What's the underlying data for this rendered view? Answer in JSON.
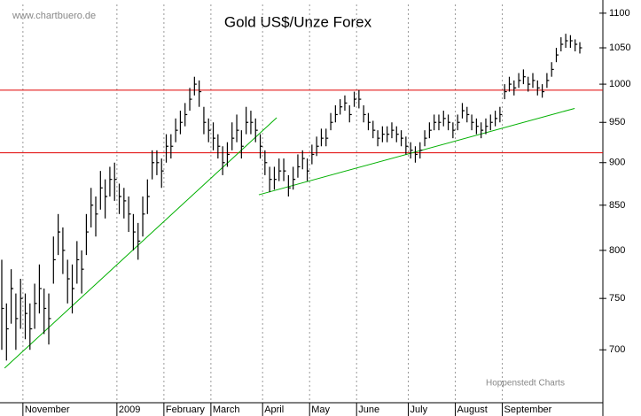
{
  "chart_data": {
    "type": "ohlc",
    "title": "Gold US$/Unze Forex",
    "watermark": "www.chartbuero.de",
    "source": "Hoppenstedt Charts",
    "log_scale": true,
    "grid": true,
    "color": "#000000",
    "ylim": [
      652,
      1113
    ],
    "yticks": [
      700,
      750,
      800,
      850,
      900,
      950,
      1000,
      1050,
      1100
    ],
    "categories": [
      null,
      null,
      null,
      null,
      null,
      "November",
      null,
      null,
      null,
      null,
      null,
      null,
      null,
      null,
      null,
      null,
      null,
      null,
      null,
      null,
      null,
      null,
      null,
      null,
      null,
      "2009",
      null,
      null,
      null,
      null,
      null,
      null,
      null,
      null,
      null,
      "February",
      null,
      null,
      null,
      null,
      null,
      null,
      null,
      null,
      null,
      "March",
      null,
      null,
      null,
      null,
      null,
      null,
      null,
      null,
      null,
      null,
      "April",
      null,
      null,
      null,
      null,
      null,
      null,
      null,
      null,
      null,
      "May",
      null,
      null,
      null,
      null,
      null,
      null,
      null,
      null,
      null,
      "June",
      null,
      null,
      null,
      null,
      null,
      null,
      null,
      null,
      null,
      null,
      "July",
      null,
      null,
      null,
      null,
      null,
      null,
      null,
      null,
      null,
      "August",
      null,
      null,
      null,
      null,
      null,
      null,
      null,
      null,
      null,
      "September",
      null,
      null,
      null,
      null,
      null,
      null,
      null,
      null,
      null,
      null,
      null,
      null,
      null,
      null,
      null,
      null
    ],
    "high": [
      790,
      745,
      780,
      755,
      770,
      755,
      745,
      765,
      785,
      760,
      755,
      815,
      840,
      825,
      790,
      785,
      810,
      800,
      840,
      870,
      860,
      890,
      880,
      895,
      900,
      875,
      870,
      860,
      840,
      830,
      860,
      880,
      915,
      915,
      905,
      935,
      935,
      955,
      965,
      975,
      995,
      1010,
      1005,
      970,
      955,
      950,
      935,
      920,
      925,
      950,
      960,
      940,
      970,
      965,
      955,
      935,
      915,
      895,
      895,
      905,
      905,
      885,
      895,
      910,
      915,
      905,
      922,
      932,
      942,
      942,
      962,
      972,
      980,
      985,
      972,
      990,
      992,
      972,
      962,
      952,
      940,
      945,
      945,
      950,
      945,
      940,
      932,
      925,
      920,
      925,
      940,
      950,
      960,
      960,
      965,
      960,
      950,
      960,
      975,
      970,
      960,
      955,
      950,
      955,
      960,
      965,
      970,
      1000,
      1010,
      1005,
      1015,
      1020,
      1010,
      1015,
      1005,
      1000,
      1015,
      1030,
      1050,
      1065,
      1070,
      1068,
      1062,
      1058
    ],
    "low": [
      700,
      690,
      725,
      700,
      720,
      710,
      700,
      720,
      735,
      715,
      705,
      765,
      795,
      775,
      745,
      735,
      765,
      755,
      795,
      825,
      815,
      845,
      835,
      860,
      855,
      840,
      835,
      820,
      800,
      790,
      815,
      840,
      880,
      885,
      870,
      900,
      905,
      925,
      935,
      945,
      965,
      985,
      970,
      935,
      925,
      915,
      905,
      885,
      895,
      915,
      925,
      905,
      935,
      935,
      925,
      905,
      885,
      865,
      868,
      878,
      878,
      860,
      868,
      882,
      892,
      878,
      898,
      908,
      920,
      920,
      940,
      950,
      960,
      965,
      950,
      970,
      968,
      950,
      940,
      930,
      920,
      925,
      925,
      930,
      925,
      920,
      910,
      905,
      900,
      905,
      920,
      930,
      940,
      940,
      945,
      940,
      930,
      940,
      955,
      950,
      940,
      935,
      930,
      935,
      940,
      945,
      950,
      980,
      990,
      985,
      995,
      1000,
      990,
      995,
      985,
      982,
      995,
      1010,
      1030,
      1045,
      1050,
      1050,
      1045,
      1042
    ],
    "close": [
      740,
      720,
      760,
      730,
      750,
      735,
      720,
      745,
      760,
      740,
      730,
      790,
      820,
      800,
      770,
      760,
      790,
      780,
      820,
      850,
      840,
      870,
      860,
      880,
      880,
      860,
      855,
      840,
      820,
      810,
      840,
      860,
      900,
      900,
      890,
      920,
      920,
      940,
      950,
      960,
      980,
      1000,
      990,
      950,
      940,
      930,
      920,
      900,
      910,
      930,
      940,
      920,
      950,
      950,
      940,
      920,
      900,
      880,
      880,
      890,
      890,
      870,
      880,
      895,
      905,
      890,
      910,
      920,
      930,
      930,
      950,
      960,
      970,
      975,
      960,
      980,
      980,
      960,
      950,
      940,
      930,
      935,
      935,
      940,
      935,
      930,
      920,
      915,
      910,
      915,
      930,
      940,
      950,
      950,
      955,
      950,
      940,
      950,
      965,
      960,
      950,
      945,
      940,
      945,
      950,
      955,
      960,
      990,
      1000,
      995,
      1005,
      1010,
      1000,
      1005,
      995,
      990,
      1005,
      1020,
      1040,
      1055,
      1060,
      1060,
      1055,
      1050
    ],
    "levels": [
      {
        "value": 992,
        "color": "#e00000"
      },
      {
        "value": 912,
        "color": "#e00000"
      }
    ],
    "trendlines": [
      {
        "color": "#00b000",
        "points": [
          [
            0.6,
            683
          ],
          [
            58.5,
            956
          ]
        ]
      },
      {
        "color": "#00b000",
        "points": [
          [
            54.7,
            862
          ],
          [
            121.9,
            968
          ]
        ]
      }
    ]
  }
}
